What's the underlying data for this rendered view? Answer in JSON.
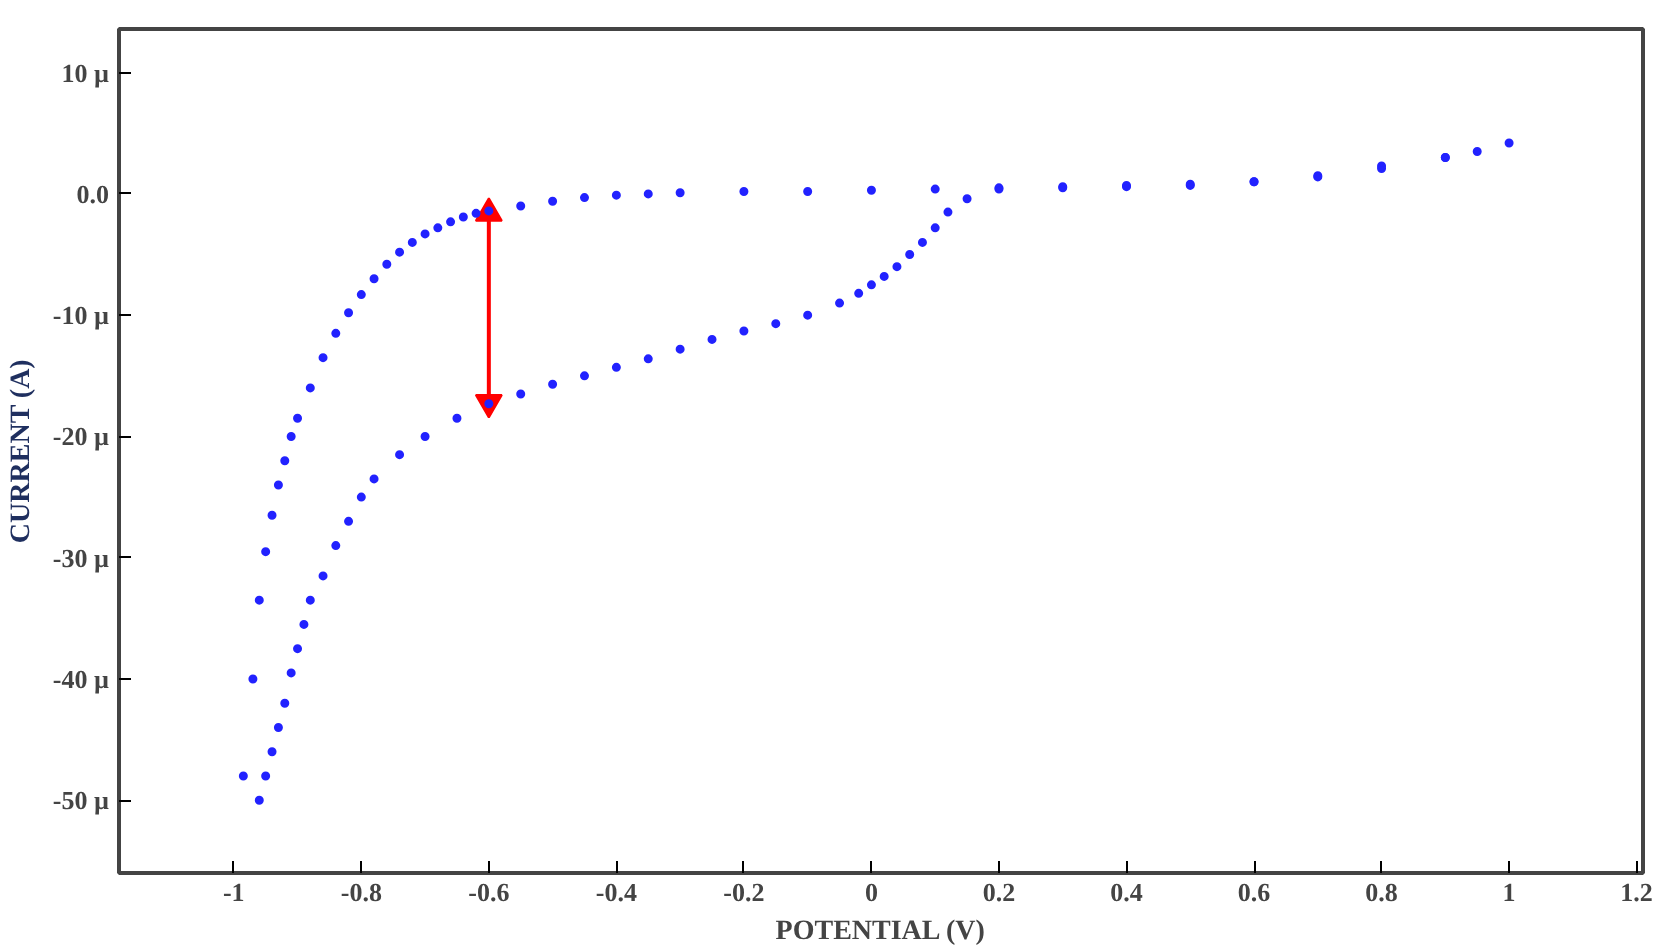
{
  "chart_data": {
    "type": "scatter",
    "xlabel": "POTENTIAL (V)",
    "ylabel": "CURRENT (A)",
    "xlim": [
      -1.18,
      1.21
    ],
    "ylim": [
      -56,
      13.6
    ],
    "xticks": [
      -1,
      -0.8,
      -0.6,
      -0.4,
      -0.2,
      0,
      0.2,
      0.4,
      0.6,
      0.8,
      1,
      1.2
    ],
    "yticks": [
      {
        "value": 10,
        "label": "10 µ"
      },
      {
        "value": 0,
        "label": "0.0"
      },
      {
        "value": -10,
        "label": "-10 µ"
      },
      {
        "value": -20,
        "label": "-20 µ"
      },
      {
        "value": -30,
        "label": "-30 µ"
      },
      {
        "value": -40,
        "label": "-40 µ"
      },
      {
        "value": -50,
        "label": "-50 µ"
      }
    ],
    "grid": false,
    "marker": "circle",
    "series": [
      {
        "color": "#2222ff",
        "x": [
          -0.985,
          -0.97,
          -0.96,
          -0.95,
          -0.94,
          -0.93,
          -0.92,
          -0.91,
          -0.9,
          -0.88,
          -0.86,
          -0.84,
          -0.82,
          -0.8,
          -0.78,
          -0.76,
          -0.74,
          -0.72,
          -0.7,
          -0.68,
          -0.66,
          -0.64,
          -0.62,
          -0.6,
          -0.55,
          -0.5,
          -0.45,
          -0.4,
          -0.35,
          -0.3,
          -0.2,
          -0.1,
          0,
          0.1,
          0.2,
          0.3,
          0.4,
          0.5,
          0.6,
          0.7,
          0.8,
          0.9,
          1.0,
          0.95,
          0.9,
          0.8,
          0.7,
          0.6,
          0.5,
          0.4,
          0.3,
          0.2,
          0.15,
          0.12,
          0.1,
          0.08,
          0.06,
          0.04,
          0.02,
          0,
          -0.02,
          -0.05,
          -0.1,
          -0.15,
          -0.2,
          -0.25,
          -0.3,
          -0.35,
          -0.4,
          -0.45,
          -0.5,
          -0.55,
          -0.6,
          -0.65,
          -0.7,
          -0.74,
          -0.78,
          -0.8,
          -0.82,
          -0.84,
          -0.86,
          -0.88,
          -0.89,
          -0.9,
          -0.91,
          -0.92,
          -0.93,
          -0.94,
          -0.95,
          -0.96
        ],
        "values": [
          -48,
          -40,
          -33.5,
          -29.5,
          -26.5,
          -24,
          -22,
          -20,
          -18.5,
          -16,
          -13.5,
          -11.5,
          -9.8,
          -8.3,
          -7,
          -5.8,
          -4.8,
          -4,
          -3.3,
          -2.8,
          -2.3,
          -1.9,
          -1.6,
          -1.4,
          -1,
          -0.6,
          -0.3,
          -0.1,
          0,
          0.1,
          0.2,
          0.2,
          0.3,
          0.4,
          0.5,
          0.6,
          0.7,
          0.8,
          1,
          1.5,
          2.3,
          3,
          4.2,
          3.5,
          3,
          2.1,
          1.4,
          1,
          0.7,
          0.6,
          0.5,
          0.4,
          -0.4,
          -1.5,
          -2.8,
          -4,
          -5,
          -6,
          -6.8,
          -7.5,
          -8.2,
          -9,
          -10,
          -10.7,
          -11.3,
          -12,
          -12.8,
          -13.6,
          -14.3,
          -15,
          -15.7,
          -16.5,
          -17.3,
          -18.5,
          -20,
          -21.5,
          -23.5,
          -25,
          -27,
          -29,
          -31.5,
          -33.5,
          -35.5,
          -37.5,
          -39.5,
          -42,
          -44,
          -46,
          -48,
          -50
        ]
      },
      {
        "type": "line",
        "marker": "triangle",
        "color": "#ff0000",
        "x": [
          -0.6,
          -0.6
        ],
        "values": [
          -1.6,
          -17.2
        ]
      }
    ]
  }
}
